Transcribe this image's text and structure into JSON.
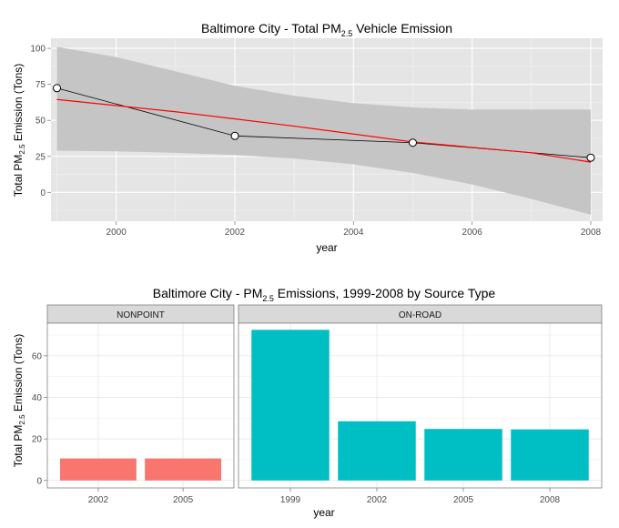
{
  "chart_data": [
    {
      "type": "line",
      "title": {
        "main": "Baltimore City - Total PM",
        "sub": "2.5",
        "tail": " Vehicle Emission"
      },
      "xlabel": "year",
      "ylabel": {
        "main": "Total PM",
        "sub": "2.5",
        "tail": " Emission (Tons)"
      },
      "xlim": [
        1998.9,
        2008.2
      ],
      "ylim": [
        -20,
        107
      ],
      "x_ticks": [
        2000,
        2002,
        2004,
        2006,
        2008
      ],
      "y_ticks": [
        0,
        25,
        50,
        75,
        100
      ],
      "grid": true,
      "series": [
        {
          "type": "line",
          "color": "#000000",
          "markers": true,
          "x": [
            1999,
            2002,
            2005,
            2008
          ],
          "y": [
            72.4,
            39.2,
            34.5,
            24.1
          ]
        },
        {
          "type": "smooth",
          "color": "#ff0000",
          "markers": false,
          "x": [
            1999,
            2001,
            2003,
            2005,
            2007,
            2008
          ],
          "y": [
            64.5,
            56.0,
            46.0,
            35.0,
            27.5,
            21.0
          ]
        }
      ],
      "confidence_band": {
        "color": "#c5c5c5",
        "x": [
          1999,
          2000,
          2001,
          2002,
          2003,
          2004,
          2005,
          2006,
          2007,
          2008
        ],
        "upper": [
          101,
          94,
          84,
          74,
          67,
          62,
          59,
          57.5,
          57.5,
          57.5
        ],
        "lower": [
          29,
          28.5,
          27.5,
          26,
          23.5,
          19.5,
          13.5,
          5.5,
          -4.5,
          -15.5
        ]
      }
    },
    {
      "type": "bar",
      "title": {
        "main": "Baltimore City - PM",
        "sub": "2.5",
        "tail": " Emissions, 1999-2008 by Source Type"
      },
      "xlabel": "year",
      "ylabel": {
        "main": "Total PM",
        "sub": "2.5",
        "tail": " Emission (Tons)"
      },
      "ylim": [
        -3.6,
        75.7
      ],
      "y_ticks": [
        0,
        20,
        40,
        60
      ],
      "grid": true,
      "panels": [
        {
          "label": "NONPOINT",
          "color": "#f8766d",
          "categories": [
            "2002",
            "2005"
          ],
          "values": [
            10.6,
            10.6
          ]
        },
        {
          "label": "ON-ROAD",
          "color": "#00bfc4",
          "categories": [
            "1999",
            "2002",
            "2005",
            "2008"
          ],
          "values": [
            72.5,
            28.5,
            24.8,
            24.6
          ]
        }
      ]
    }
  ]
}
